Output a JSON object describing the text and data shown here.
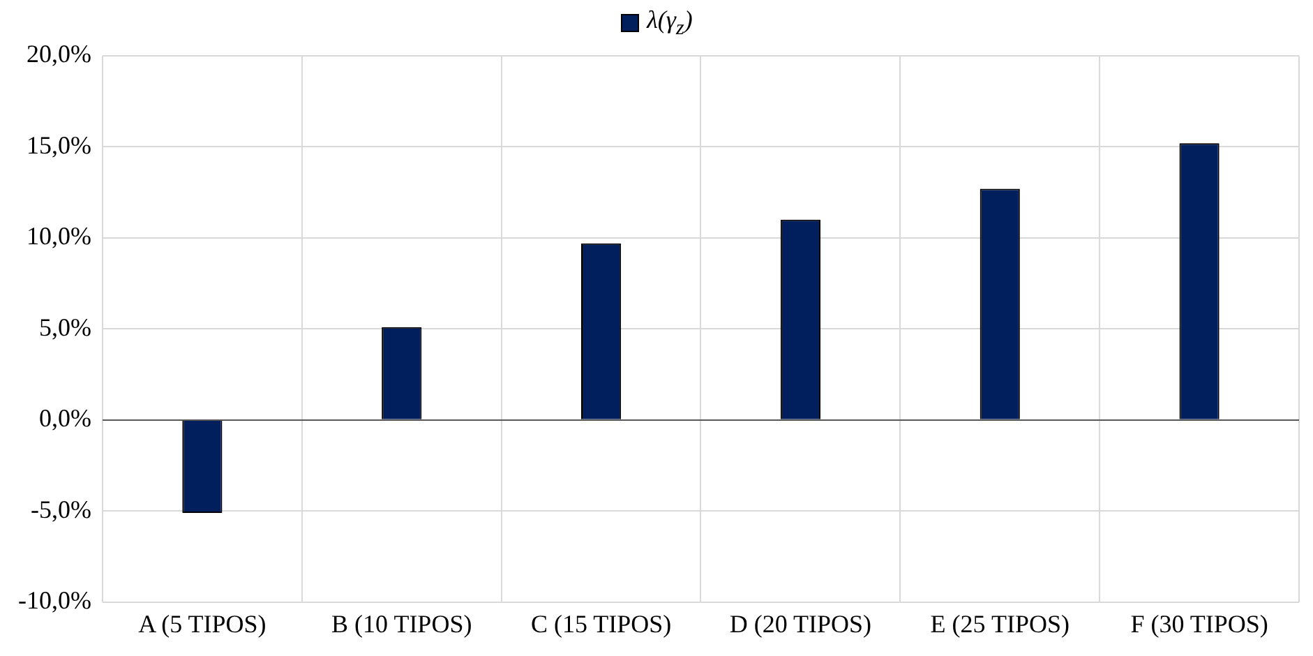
{
  "chart_data": {
    "type": "bar",
    "categories": [
      "A (5 TIPOS)",
      "B (10 TIPOS)",
      "C (15 TIPOS)",
      "D (20 TIPOS)",
      "E (25 TIPOS)",
      "F (30 TIPOS)"
    ],
    "series": [
      {
        "name": "λ(γ$_{z}$)",
        "color": "#001f5c",
        "values": [
          -5.1,
          5.1,
          9.7,
          11.0,
          12.7,
          15.2
        ]
      }
    ],
    "ylim": [
      -10,
      20
    ],
    "yticks": [
      {
        "value": -10,
        "label": "-10,0%"
      },
      {
        "value": -5,
        "label": "-5,0%"
      },
      {
        "value": 0,
        "label": "0,0%"
      },
      {
        "value": 5,
        "label": "5,0%"
      },
      {
        "value": 10,
        "label": "10,0%"
      },
      {
        "value": 15,
        "label": "15,0%"
      },
      {
        "value": 20,
        "label": "20,0%"
      }
    ],
    "grid": true,
    "legend": "top"
  }
}
